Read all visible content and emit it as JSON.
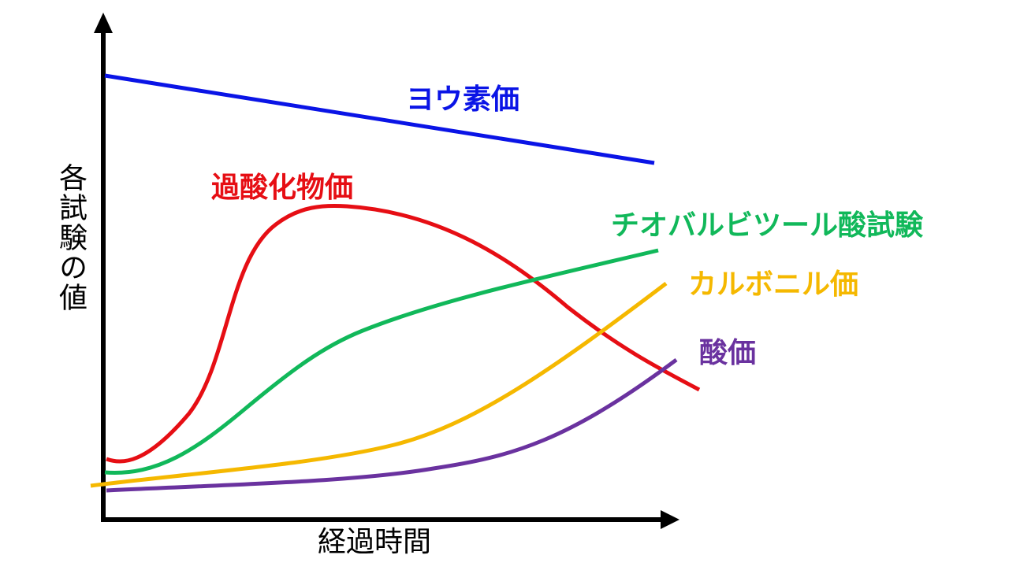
{
  "axes": {
    "y_label": "各試験の値",
    "x_label": "経過時間"
  },
  "curves": [
    {
      "label": "ヨウ素価",
      "color": "#0a14e6"
    },
    {
      "label": "過酸化物価",
      "color": "#e60e14"
    },
    {
      "label": "チオバルビツール酸試験",
      "color": "#11b85a"
    },
    {
      "label": "カルボニル価",
      "color": "#f5b800"
    },
    {
      "label": "酸価",
      "color": "#6a329f"
    }
  ]
}
